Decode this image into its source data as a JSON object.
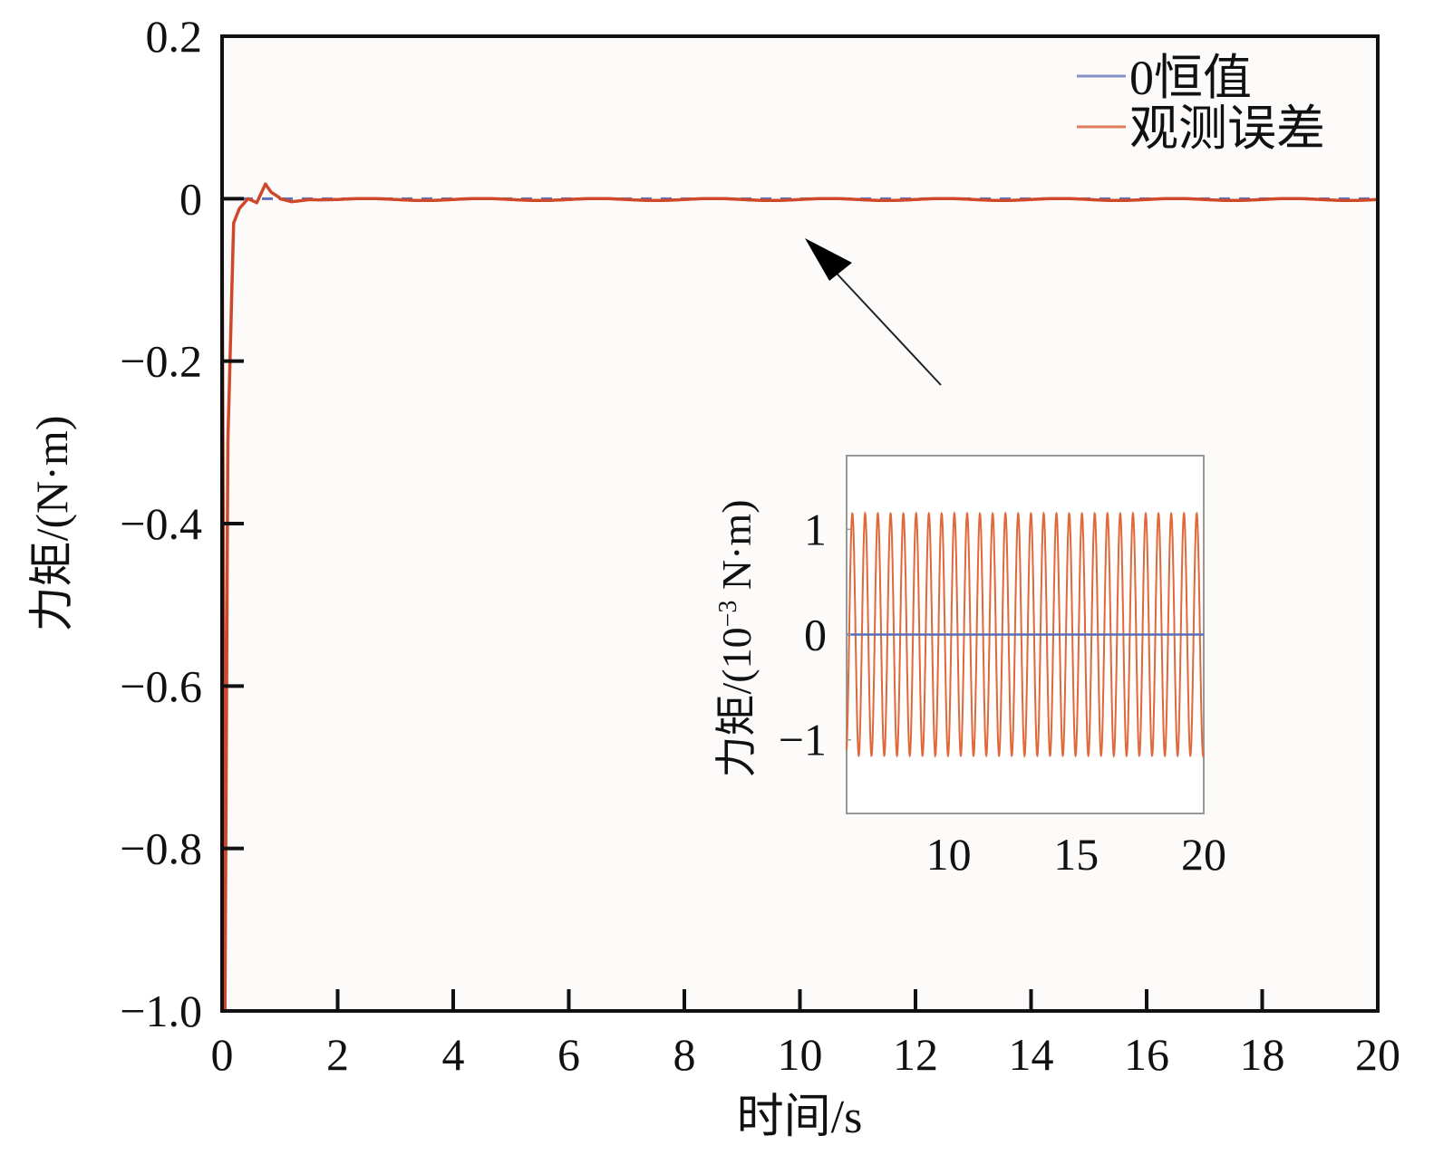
{
  "chart_data": [
    {
      "type": "line",
      "title": "",
      "xlabel": "时间/s",
      "ylabel": "力矩/(N·m)",
      "xlim": [
        0,
        20
      ],
      "ylim": [
        -1.0,
        0.2
      ],
      "xticks": [
        "0",
        "2",
        "4",
        "6",
        "8",
        "10",
        "12",
        "14",
        "16",
        "18",
        "20"
      ],
      "yticks": [
        "0.2",
        "0",
        "−0.2",
        "−0.4",
        "−0.6",
        "−0.8",
        "−1.0"
      ],
      "ytick_values": [
        0.2,
        0,
        -0.2,
        -0.4,
        -0.6,
        -0.8,
        -1.0
      ],
      "xtick_values": [
        0,
        2,
        4,
        6,
        8,
        10,
        12,
        14,
        16,
        18,
        20
      ],
      "legend_position": "top-right",
      "series": [
        {
          "name": "0恒值",
          "color": "#5b6fb8",
          "style": "dashed",
          "x": [
            0,
            20
          ],
          "y": [
            0,
            0
          ]
        },
        {
          "name": "观测误差",
          "color": "#d0482a",
          "style": "solid",
          "x": [
            0,
            0.05,
            0.1,
            0.2,
            0.3,
            0.45,
            0.6,
            0.75,
            0.85,
            1.0,
            1.2,
            1.5,
            2.0,
            20
          ],
          "y": [
            0,
            -1.0,
            -0.3,
            -0.03,
            -0.012,
            0.0,
            -0.005,
            0.018,
            0.008,
            0.001,
            -0.002,
            0.001,
            0.0,
            0.0
          ],
          "residual_oscillation_amplitude": 0.0012,
          "residual_oscillation_hz": 2
        }
      ]
    },
    {
      "type": "line",
      "title": "inset",
      "xlabel": "",
      "ylabel": "力矩/(10⁻³ N·m)",
      "ylabel_parts": [
        "力矩/(10",
        "−3",
        " N·m)"
      ],
      "xlim": [
        6,
        20
      ],
      "ylim": [
        -1.7,
        1.7
      ],
      "xticks": [
        "10",
        "15",
        "20"
      ],
      "xtick_values": [
        10,
        15,
        20
      ],
      "yticks": [
        "1",
        "0",
        "−1"
      ],
      "ytick_values": [
        1,
        0,
        -1
      ],
      "series": [
        {
          "name": "0恒值",
          "color": "#5b6fb8",
          "value": 0
        },
        {
          "name": "观测误差",
          "color": "#e0683a",
          "amplitude": 1.15,
          "frequency_hz": 2
        }
      ]
    }
  ],
  "colors": {
    "axis": "#111111",
    "inset_axis": "#999999",
    "arrow": "#111111"
  }
}
